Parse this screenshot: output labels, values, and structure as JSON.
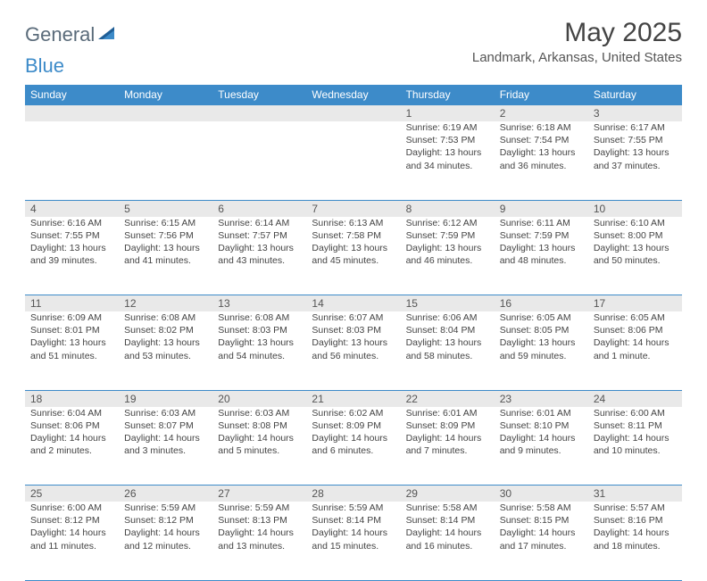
{
  "brand": {
    "part1": "General",
    "part2": "Blue"
  },
  "title": "May 2025",
  "location": "Landmark, Arkansas, United States",
  "colors": {
    "header_bg": "#3d8bc9",
    "header_text": "#ffffff",
    "daynum_bg": "#e9e9e9",
    "rule": "#3d8bc9",
    "body_text": "#444444",
    "brand_gray": "#5a6b7a",
    "brand_blue": "#3d8bc9"
  },
  "fonts": {
    "title_pt": 30,
    "location_pt": 15,
    "dayhead_pt": 12,
    "cell_pt": 10.5
  },
  "dayNames": [
    "Sunday",
    "Monday",
    "Tuesday",
    "Wednesday",
    "Thursday",
    "Friday",
    "Saturday"
  ],
  "weeks": [
    {
      "nums": [
        "",
        "",
        "",
        "",
        "1",
        "2",
        "3"
      ],
      "cells": [
        null,
        null,
        null,
        null,
        {
          "sunrise": "Sunrise: 6:19 AM",
          "sunset": "Sunset: 7:53 PM",
          "day1": "Daylight: 13 hours",
          "day2": "and 34 minutes."
        },
        {
          "sunrise": "Sunrise: 6:18 AM",
          "sunset": "Sunset: 7:54 PM",
          "day1": "Daylight: 13 hours",
          "day2": "and 36 minutes."
        },
        {
          "sunrise": "Sunrise: 6:17 AM",
          "sunset": "Sunset: 7:55 PM",
          "day1": "Daylight: 13 hours",
          "day2": "and 37 minutes."
        }
      ]
    },
    {
      "nums": [
        "4",
        "5",
        "6",
        "7",
        "8",
        "9",
        "10"
      ],
      "cells": [
        {
          "sunrise": "Sunrise: 6:16 AM",
          "sunset": "Sunset: 7:55 PM",
          "day1": "Daylight: 13 hours",
          "day2": "and 39 minutes."
        },
        {
          "sunrise": "Sunrise: 6:15 AM",
          "sunset": "Sunset: 7:56 PM",
          "day1": "Daylight: 13 hours",
          "day2": "and 41 minutes."
        },
        {
          "sunrise": "Sunrise: 6:14 AM",
          "sunset": "Sunset: 7:57 PM",
          "day1": "Daylight: 13 hours",
          "day2": "and 43 minutes."
        },
        {
          "sunrise": "Sunrise: 6:13 AM",
          "sunset": "Sunset: 7:58 PM",
          "day1": "Daylight: 13 hours",
          "day2": "and 45 minutes."
        },
        {
          "sunrise": "Sunrise: 6:12 AM",
          "sunset": "Sunset: 7:59 PM",
          "day1": "Daylight: 13 hours",
          "day2": "and 46 minutes."
        },
        {
          "sunrise": "Sunrise: 6:11 AM",
          "sunset": "Sunset: 7:59 PM",
          "day1": "Daylight: 13 hours",
          "day2": "and 48 minutes."
        },
        {
          "sunrise": "Sunrise: 6:10 AM",
          "sunset": "Sunset: 8:00 PM",
          "day1": "Daylight: 13 hours",
          "day2": "and 50 minutes."
        }
      ]
    },
    {
      "nums": [
        "11",
        "12",
        "13",
        "14",
        "15",
        "16",
        "17"
      ],
      "cells": [
        {
          "sunrise": "Sunrise: 6:09 AM",
          "sunset": "Sunset: 8:01 PM",
          "day1": "Daylight: 13 hours",
          "day2": "and 51 minutes."
        },
        {
          "sunrise": "Sunrise: 6:08 AM",
          "sunset": "Sunset: 8:02 PM",
          "day1": "Daylight: 13 hours",
          "day2": "and 53 minutes."
        },
        {
          "sunrise": "Sunrise: 6:08 AM",
          "sunset": "Sunset: 8:03 PM",
          "day1": "Daylight: 13 hours",
          "day2": "and 54 minutes."
        },
        {
          "sunrise": "Sunrise: 6:07 AM",
          "sunset": "Sunset: 8:03 PM",
          "day1": "Daylight: 13 hours",
          "day2": "and 56 minutes."
        },
        {
          "sunrise": "Sunrise: 6:06 AM",
          "sunset": "Sunset: 8:04 PM",
          "day1": "Daylight: 13 hours",
          "day2": "and 58 minutes."
        },
        {
          "sunrise": "Sunrise: 6:05 AM",
          "sunset": "Sunset: 8:05 PM",
          "day1": "Daylight: 13 hours",
          "day2": "and 59 minutes."
        },
        {
          "sunrise": "Sunrise: 6:05 AM",
          "sunset": "Sunset: 8:06 PM",
          "day1": "Daylight: 14 hours",
          "day2": "and 1 minute."
        }
      ]
    },
    {
      "nums": [
        "18",
        "19",
        "20",
        "21",
        "22",
        "23",
        "24"
      ],
      "cells": [
        {
          "sunrise": "Sunrise: 6:04 AM",
          "sunset": "Sunset: 8:06 PM",
          "day1": "Daylight: 14 hours",
          "day2": "and 2 minutes."
        },
        {
          "sunrise": "Sunrise: 6:03 AM",
          "sunset": "Sunset: 8:07 PM",
          "day1": "Daylight: 14 hours",
          "day2": "and 3 minutes."
        },
        {
          "sunrise": "Sunrise: 6:03 AM",
          "sunset": "Sunset: 8:08 PM",
          "day1": "Daylight: 14 hours",
          "day2": "and 5 minutes."
        },
        {
          "sunrise": "Sunrise: 6:02 AM",
          "sunset": "Sunset: 8:09 PM",
          "day1": "Daylight: 14 hours",
          "day2": "and 6 minutes."
        },
        {
          "sunrise": "Sunrise: 6:01 AM",
          "sunset": "Sunset: 8:09 PM",
          "day1": "Daylight: 14 hours",
          "day2": "and 7 minutes."
        },
        {
          "sunrise": "Sunrise: 6:01 AM",
          "sunset": "Sunset: 8:10 PM",
          "day1": "Daylight: 14 hours",
          "day2": "and 9 minutes."
        },
        {
          "sunrise": "Sunrise: 6:00 AM",
          "sunset": "Sunset: 8:11 PM",
          "day1": "Daylight: 14 hours",
          "day2": "and 10 minutes."
        }
      ]
    },
    {
      "nums": [
        "25",
        "26",
        "27",
        "28",
        "29",
        "30",
        "31"
      ],
      "cells": [
        {
          "sunrise": "Sunrise: 6:00 AM",
          "sunset": "Sunset: 8:12 PM",
          "day1": "Daylight: 14 hours",
          "day2": "and 11 minutes."
        },
        {
          "sunrise": "Sunrise: 5:59 AM",
          "sunset": "Sunset: 8:12 PM",
          "day1": "Daylight: 14 hours",
          "day2": "and 12 minutes."
        },
        {
          "sunrise": "Sunrise: 5:59 AM",
          "sunset": "Sunset: 8:13 PM",
          "day1": "Daylight: 14 hours",
          "day2": "and 13 minutes."
        },
        {
          "sunrise": "Sunrise: 5:59 AM",
          "sunset": "Sunset: 8:14 PM",
          "day1": "Daylight: 14 hours",
          "day2": "and 15 minutes."
        },
        {
          "sunrise": "Sunrise: 5:58 AM",
          "sunset": "Sunset: 8:14 PM",
          "day1": "Daylight: 14 hours",
          "day2": "and 16 minutes."
        },
        {
          "sunrise": "Sunrise: 5:58 AM",
          "sunset": "Sunset: 8:15 PM",
          "day1": "Daylight: 14 hours",
          "day2": "and 17 minutes."
        },
        {
          "sunrise": "Sunrise: 5:57 AM",
          "sunset": "Sunset: 8:16 PM",
          "day1": "Daylight: 14 hours",
          "day2": "and 18 minutes."
        }
      ]
    }
  ]
}
